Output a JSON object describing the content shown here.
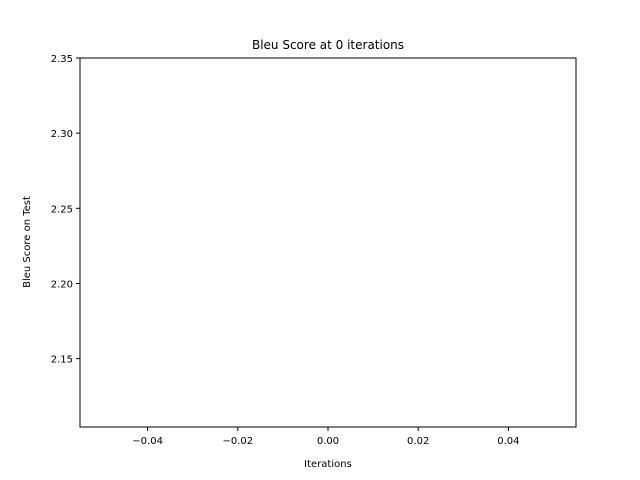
{
  "chart_data": {
    "type": "line",
    "title": "Bleu Score at 0 iterations",
    "xlabel": "Iterations",
    "ylabel": "Bleu Score on Test",
    "xlim": [
      -0.055,
      0.055
    ],
    "ylim": [
      2.1045,
      2.35
    ],
    "xticks": [
      -0.04,
      -0.02,
      0.0,
      0.02,
      0.04
    ],
    "xtick_labels": [
      "−0.04",
      "−0.02",
      "0.00",
      "0.02",
      "0.04"
    ],
    "yticks": [
      2.15,
      2.2,
      2.25,
      2.3,
      2.35
    ],
    "ytick_labels": [
      "2.15",
      "2.20",
      "2.25",
      "2.30",
      "2.35"
    ],
    "grid": false,
    "series": [
      {
        "x": [],
        "values": [],
        "color": "#1f77b4"
      }
    ]
  }
}
